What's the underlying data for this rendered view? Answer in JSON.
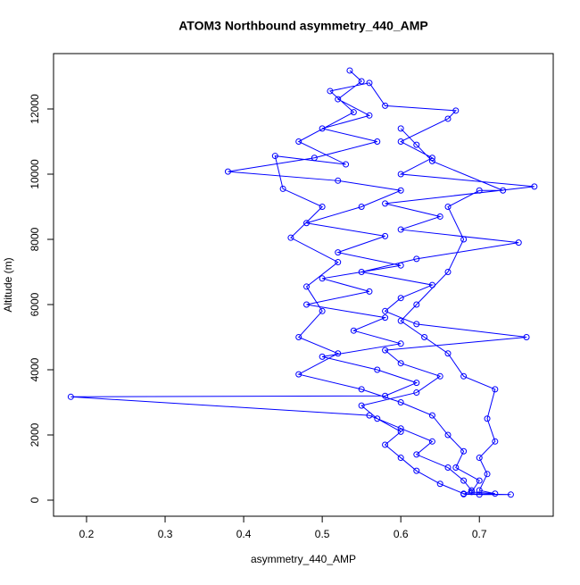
{
  "chart_data": {
    "type": "line",
    "title": "ATOM3 Northbound asymmetry_440_AMP",
    "x_label": "asymmetry_440_AMP",
    "y_label": "Altitude (m)",
    "color": "#0000ff",
    "markers": true,
    "grid": false,
    "xlim": [
      0.158,
      0.794
    ],
    "ylim": [
      -493,
      13699
    ],
    "xticks": [
      0.2,
      0.3,
      0.4,
      0.5,
      0.6,
      0.7
    ],
    "yticks": [
      0,
      2000,
      4000,
      6000,
      8000,
      10000,
      12000
    ],
    "x": [
      0.535,
      0.55,
      0.52,
      0.56,
      0.5,
      0.57,
      0.49,
      0.38,
      0.52,
      0.6,
      0.55,
      0.48,
      0.58,
      0.52,
      0.6,
      0.5,
      0.56,
      0.48,
      0.58,
      0.54,
      0.6,
      0.5,
      0.57,
      0.62,
      0.58,
      0.18,
      0.56,
      0.6,
      0.64,
      0.62,
      0.66,
      0.68,
      0.69,
      0.68,
      0.7,
      0.74,
      0.68,
      0.65,
      0.62,
      0.6,
      0.58,
      0.6,
      0.57,
      0.55,
      0.62,
      0.65,
      0.6,
      0.58,
      0.76,
      0.62,
      0.58,
      0.6,
      0.64,
      0.55,
      0.62,
      0.75,
      0.6,
      0.65,
      0.58,
      0.77,
      0.6,
      0.64,
      0.6,
      0.66,
      0.67,
      0.58,
      0.56,
      0.51,
      0.54,
      0.47,
      0.53,
      0.44,
      0.45,
      0.5,
      0.46,
      0.52,
      0.48,
      0.5,
      0.47,
      0.52,
      0.47,
      0.55,
      0.6,
      0.64,
      0.66,
      0.68,
      0.67,
      0.7,
      0.69,
      0.72,
      0.7,
      0.71,
      0.7,
      0.72,
      0.71,
      0.72,
      0.68,
      0.66,
      0.63,
      0.6,
      0.62,
      0.66,
      0.68,
      0.66,
      0.7,
      0.73,
      0.64,
      0.62,
      0.6
    ],
    "values": [
      13180,
      12850,
      12300,
      11800,
      11400,
      11000,
      10500,
      10080,
      9800,
      9500,
      9000,
      8500,
      8100,
      7600,
      7200,
      6800,
      6400,
      6000,
      5600,
      5200,
      4800,
      4400,
      4000,
      3600,
      3200,
      3170,
      2600,
      2200,
      1800,
      1400,
      1000,
      600,
      300,
      180,
      170,
      170,
      200,
      500,
      900,
      1300,
      1700,
      2100,
      2500,
      2900,
      3300,
      3800,
      4200,
      4600,
      5000,
      5400,
      5800,
      6200,
      6600,
      7000,
      7400,
      7900,
      8300,
      8700,
      9100,
      9620,
      10000,
      10500,
      11000,
      11700,
      11950,
      12100,
      12800,
      12550,
      11900,
      11000,
      10300,
      10560,
      9550,
      9000,
      8050,
      7300,
      6550,
      5800,
      5000,
      4500,
      3860,
      3400,
      3000,
      2600,
      2000,
      1500,
      1000,
      600,
      250,
      200,
      300,
      800,
      1300,
      1800,
      2500,
      3400,
      3800,
      4500,
      5000,
      5500,
      6000,
      7000,
      8000,
      9000,
      9500,
      9500,
      10400,
      10900,
      11400
    ]
  }
}
